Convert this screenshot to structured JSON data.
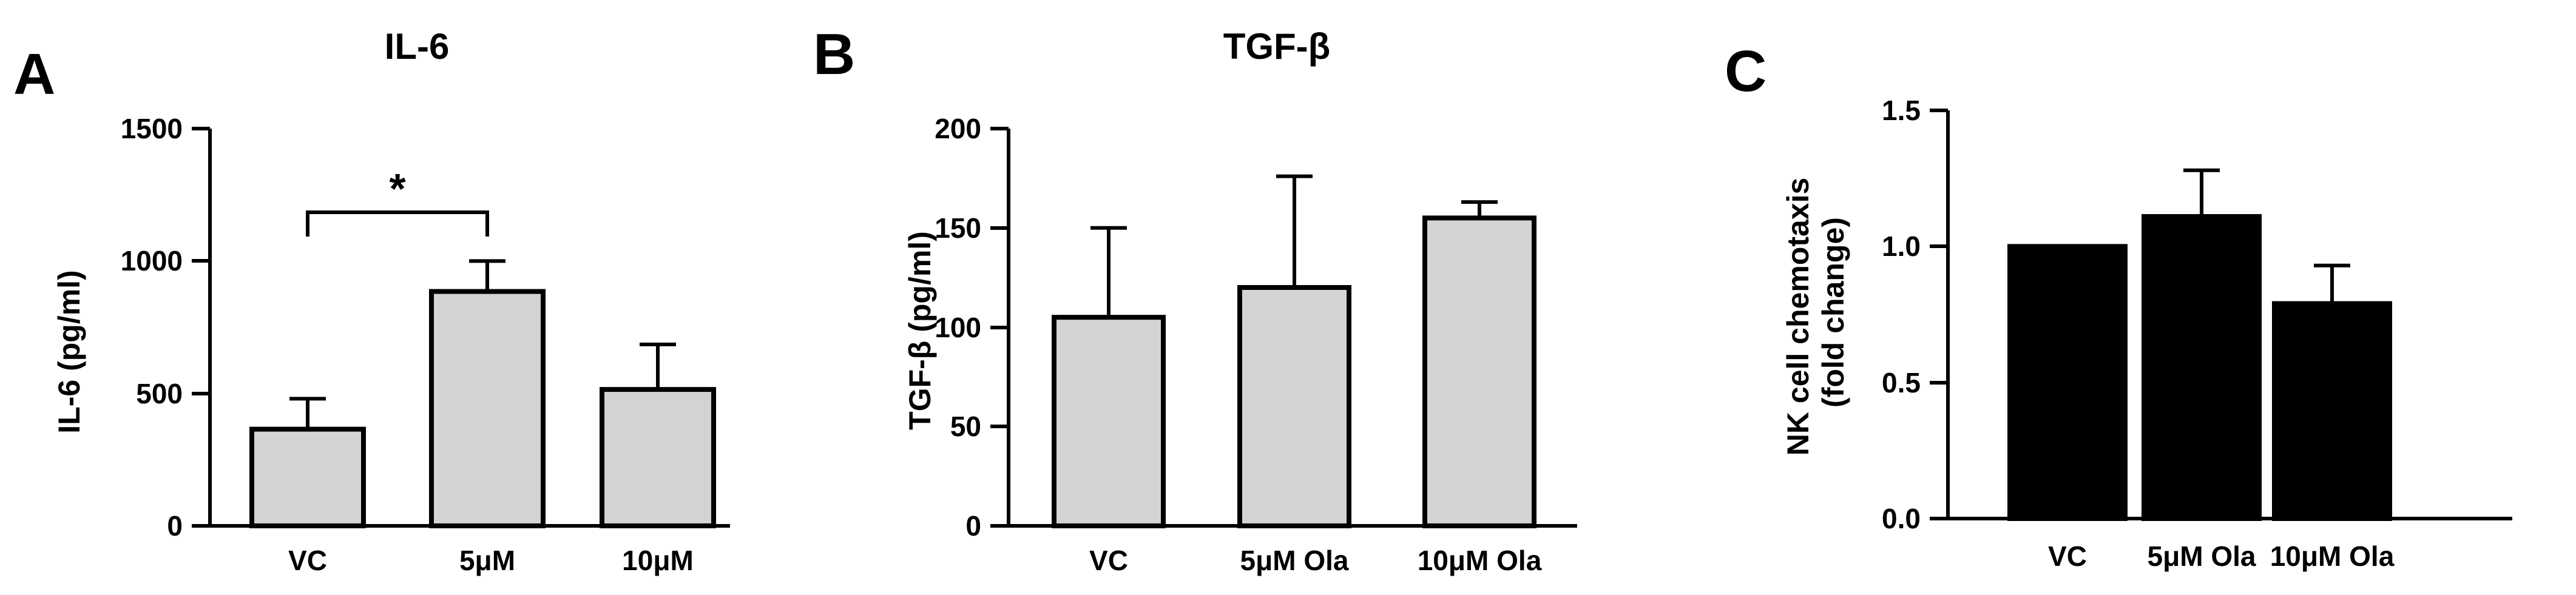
{
  "chart_data": [
    {
      "type": "bar",
      "panel": "A",
      "title": "IL-6",
      "xlabel": "",
      "ylabel": "IL-6 (pg/ml)",
      "ylabel_lines": [
        "IL-6 (pg/ml)"
      ],
      "ylim": [
        0,
        1500
      ],
      "yticks": [
        0,
        500,
        1000,
        1500
      ],
      "ytick_labels": [
        "0",
        "500",
        "1000",
        "1500"
      ],
      "categories": [
        "VC",
        "5μM",
        "10μM"
      ],
      "values": [
        365,
        885,
        515
      ],
      "errors": [
        115,
        115,
        170
      ],
      "bar_color": "#d3d3d3",
      "significance": [
        {
          "from": 0,
          "to": 1,
          "label": "*"
        }
      ]
    },
    {
      "type": "bar",
      "panel": "B",
      "title": "TGF-β",
      "xlabel": "",
      "ylabel": "TGF-β (pg/ml)",
      "ylabel_lines": [
        "TGF-β (pg/ml)"
      ],
      "ylim": [
        0,
        200
      ],
      "yticks": [
        0,
        50,
        100,
        150,
        200
      ],
      "ytick_labels": [
        "0",
        "50",
        "100",
        "150",
        "200"
      ],
      "categories": [
        "VC",
        "5μM Ola",
        "10μM Ola"
      ],
      "values": [
        105,
        120,
        155
      ],
      "errors": [
        45,
        56,
        8
      ],
      "bar_color": "#d3d3d3",
      "significance": []
    },
    {
      "type": "bar",
      "panel": "C",
      "title": "",
      "xlabel": "",
      "ylabel": "NK cell chemotaxis (fold change)",
      "ylabel_lines": [
        "NK cell chemotaxis",
        "(fold change)"
      ],
      "ylim": [
        0,
        1.5
      ],
      "yticks": [
        0,
        0.5,
        1.0,
        1.5
      ],
      "ytick_labels": [
        "0.0",
        "0.5",
        "1.0",
        "1.5"
      ],
      "categories": [
        "VC",
        "5μM Ola",
        "10μM Ola"
      ],
      "values": [
        1.0,
        1.11,
        0.79
      ],
      "errors": [
        0,
        0.17,
        0.14
      ],
      "bar_color": "#000000",
      "significance": []
    }
  ]
}
